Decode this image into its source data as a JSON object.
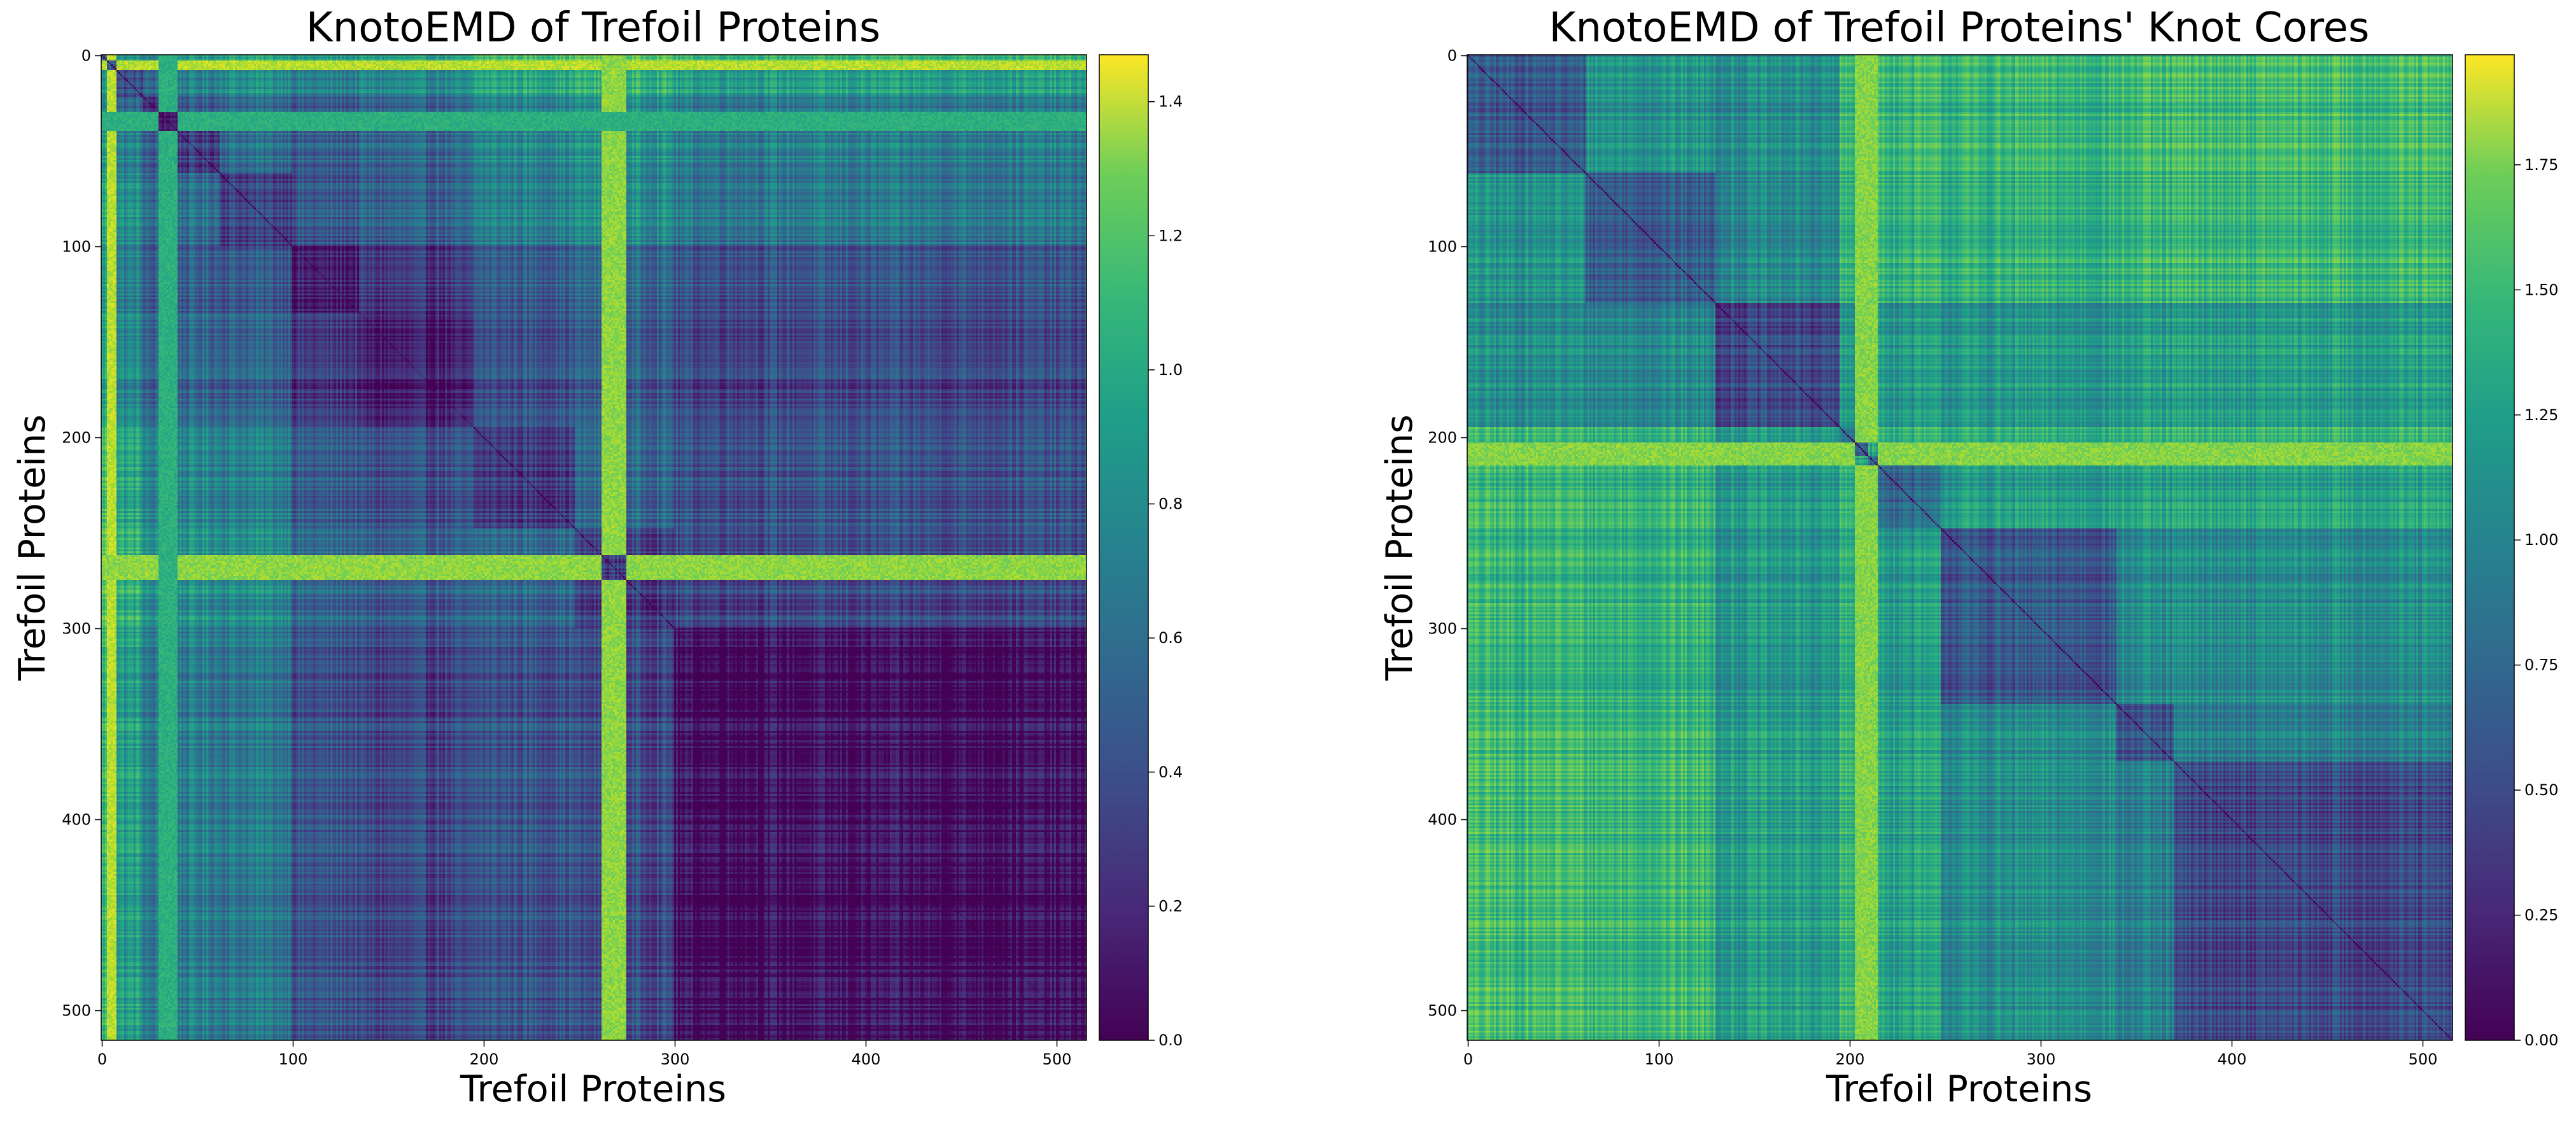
{
  "chart_data": [
    {
      "type": "heatmap",
      "title": "KnotoEMD of Trefoil Proteins",
      "xlabel": "Trefoil Proteins",
      "ylabel": "Trefoil Proteins",
      "n": 516,
      "x_ticks": [
        0,
        100,
        200,
        300,
        400,
        500
      ],
      "y_ticks": [
        0,
        100,
        200,
        300,
        400,
        500
      ],
      "colorbar": {
        "min": 0.0,
        "max": 1.47,
        "ticks": [
          "0.0",
          "0.2",
          "0.4",
          "0.6",
          "0.8",
          "1.0",
          "1.2",
          "1.4"
        ]
      },
      "colormap": "viridis",
      "blocks": [
        {
          "range": [
            0,
            8
          ],
          "within": 0.55
        },
        {
          "range": [
            8,
            22
          ],
          "within": 0.4
        },
        {
          "range": [
            22,
            40
          ],
          "within": 0.15
        },
        {
          "range": [
            40,
            62
          ],
          "within": 0.3
        },
        {
          "range": [
            62,
            100
          ],
          "within": 0.35
        },
        {
          "range": [
            100,
            135
          ],
          "within": 0.12
        },
        {
          "range": [
            135,
            195
          ],
          "within": 0.1
        },
        {
          "range": [
            195,
            248
          ],
          "within": 0.3
        },
        {
          "range": [
            248,
            300
          ],
          "within": 0.3
        },
        {
          "range": [
            300,
            516
          ],
          "within": 0.06
        }
      ],
      "bright_bands": [
        {
          "range": [
            3,
            8
          ],
          "value": 1.35
        },
        {
          "range": [
            262,
            275
          ],
          "value": 1.25
        },
        {
          "range": [
            30,
            40
          ],
          "value": 0.95
        }
      ]
    },
    {
      "type": "heatmap",
      "title": "KnotoEMD of Trefoil Proteins' Knot Cores",
      "xlabel": "Trefoil Proteins",
      "ylabel": "Trefoil Proteins",
      "n": 516,
      "x_ticks": [
        0,
        100,
        200,
        300,
        400,
        500
      ],
      "y_ticks": [
        0,
        100,
        200,
        300,
        400,
        500
      ],
      "colorbar": {
        "min": 0.0,
        "max": 1.97,
        "ticks": [
          "0.00",
          "0.25",
          "0.50",
          "0.75",
          "1.00",
          "1.25",
          "1.50",
          "1.75"
        ]
      },
      "colormap": "viridis",
      "blocks": [
        {
          "range": [
            0,
            62
          ],
          "within": 0.45
        },
        {
          "range": [
            62,
            130
          ],
          "within": 0.5
        },
        {
          "range": [
            130,
            195
          ],
          "within": 0.35
        },
        {
          "range": [
            195,
            210
          ],
          "within": 0.6
        },
        {
          "range": [
            210,
            248
          ],
          "within": 0.55
        },
        {
          "range": [
            248,
            340
          ],
          "within": 0.45
        },
        {
          "range": [
            340,
            370
          ],
          "within": 0.4
        },
        {
          "range": [
            370,
            516
          ],
          "within": 0.35
        }
      ],
      "bright_bands": [
        {
          "range": [
            203,
            215
          ],
          "value": 1.65
        }
      ]
    }
  ]
}
